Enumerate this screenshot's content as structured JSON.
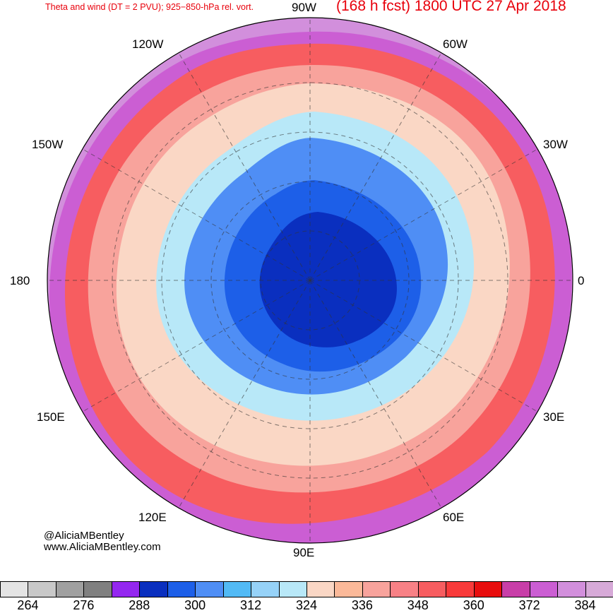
{
  "title": {
    "left": "Theta and wind (DT = 2 PVU); 925−850-hPa rel. vort.",
    "right": "(168 h fcst) 1800 UTC 27 Apr 2018"
  },
  "longitude_labels": [
    {
      "id": "90w",
      "text": "90W"
    },
    {
      "id": "60w",
      "text": "60W"
    },
    {
      "id": "30w",
      "text": "30W"
    },
    {
      "id": "0",
      "text": "0"
    },
    {
      "id": "30e",
      "text": "30E"
    },
    {
      "id": "60e",
      "text": "60E"
    },
    {
      "id": "90e",
      "text": "90E"
    },
    {
      "id": "120e",
      "text": "120E"
    },
    {
      "id": "150e",
      "text": "150E"
    },
    {
      "id": "180",
      "text": "180"
    },
    {
      "id": "150w",
      "text": "150W"
    },
    {
      "id": "120w",
      "text": "120W"
    }
  ],
  "credit": {
    "handle": "@AliciaMBentley",
    "website": "www.AliciaMBentley.com"
  },
  "colorbar": {
    "colors": [
      "#e4e4e4",
      "#c8c8c8",
      "#a0a0a0",
      "#808080",
      "#9427f0",
      "#0a2fbf",
      "#1d5fe8",
      "#4f8ef5",
      "#52baf5",
      "#96d2f8",
      "#b8e8f8",
      "#fad7c5",
      "#fbb999",
      "#f8a39c",
      "#f88186",
      "#f75d60",
      "#f93a3a",
      "#e80d0d",
      "#c83ea8",
      "#cb5ed3",
      "#d28fdc",
      "#d7aad8"
    ],
    "tick_labels": [
      "264",
      "276",
      "288",
      "300",
      "312",
      "324",
      "336",
      "348",
      "360",
      "372",
      "384"
    ]
  },
  "map_colors": {
    "outer": "#d28fdc",
    "ring_magenta": "#cb5ed3",
    "ring_red": "#f75d60",
    "ring_salmon": "#f8a39c",
    "ring_peach": "#fad7c5",
    "ring_lightblue": "#b8e8f8",
    "ring_blue": "#4f8ef5",
    "ring_darkblue": "#1d5fe8",
    "core": "#0a2fbf"
  }
}
